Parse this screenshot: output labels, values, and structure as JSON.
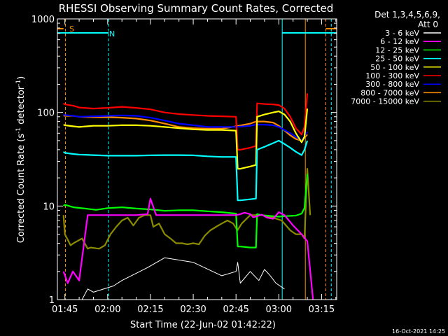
{
  "chart_data": {
    "type": "line",
    "title": "RHESSI Observing Summary Count Rates, Corrected",
    "xlabel": "Start Time (22-Jun-02 01:42:22)",
    "ylabel_main": "Corrected Count Rate (s",
    "ylabel_sup1": "-1",
    "ylabel_mid": " detector",
    "ylabel_sup2": "-1",
    "ylabel_end": ")",
    "yscale": "log",
    "ylim": [
      1,
      1000
    ],
    "xlim_minutes": [
      102.37,
      200.3
    ],
    "x_ticks": [
      {
        "label": "01:45",
        "minutes": 105
      },
      {
        "label": "02:00",
        "minutes": 120
      },
      {
        "label": "02:15",
        "minutes": 135
      },
      {
        "label": "02:30",
        "minutes": 150
      },
      {
        "label": "02:45",
        "minutes": 165
      },
      {
        "label": "03:00",
        "minutes": 180
      },
      {
        "label": "03:15",
        "minutes": 195
      }
    ],
    "y_ticks": [
      {
        "label": "1",
        "value": 1
      },
      {
        "label": "10",
        "value": 10
      },
      {
        "label": "100",
        "value": 100
      },
      {
        "label": "1000",
        "value": 1000
      }
    ],
    "legend": {
      "placement": "right",
      "header1": "Det 1,3,4,5,6,9,",
      "header2": "Att 0"
    },
    "series": [
      {
        "name": "3 - 6 keV",
        "color": "#ffffff",
        "x": [
          104.5,
          108.8,
          111,
          113,
          115,
          122,
          125,
          134,
          140,
          150,
          160,
          165,
          165.6,
          166.5,
          170,
          173,
          175,
          177,
          179,
          182
        ],
        "y": [
          1,
          1,
          1,
          1.3,
          1.2,
          1.4,
          1.6,
          2.2,
          2.8,
          2.5,
          1.8,
          2,
          2.5,
          1.5,
          2,
          1.6,
          2.1,
          1.8,
          1.5,
          1.3
        ]
      },
      {
        "name": "6 - 12 keV",
        "color": "#ff00ff",
        "x": [
          104.5,
          106,
          107.8,
          110,
          113,
          115,
          120,
          125,
          130,
          134,
          135,
          137,
          140,
          145,
          150,
          155,
          160,
          165,
          166.5,
          168,
          170,
          171,
          172,
          174,
          176,
          178,
          180,
          182,
          185,
          188,
          190,
          192
        ],
        "y": [
          2,
          1.5,
          2,
          1.6,
          8,
          8,
          8,
          8,
          8,
          8.2,
          12,
          8,
          8,
          8,
          8,
          8,
          8,
          8,
          8.2,
          8.5,
          8.2,
          7.6,
          7.7,
          8.1,
          7.5,
          7.3,
          8.6,
          8,
          6.2,
          5,
          4.2,
          1
        ]
      },
      {
        "name": "12 - 25 keV",
        "color": "#00ff00",
        "x": [
          104.5,
          105,
          108,
          112,
          116,
          120,
          125,
          130,
          135,
          140,
          145,
          150,
          155,
          160,
          165,
          165.6,
          166.5,
          170,
          172,
          172.4,
          174,
          178,
          180,
          182,
          186,
          188,
          189,
          190
        ],
        "y": [
          10,
          10.3,
          9.7,
          9.4,
          9.1,
          9.5,
          9.7,
          9.4,
          9.2,
          8.9,
          9.0,
          9.0,
          8.8,
          8.6,
          8.3,
          3.7,
          3.7,
          3.6,
          3.6,
          8.2,
          8.0,
          7.8,
          7.7,
          7.8,
          7.9,
          8.3,
          9.5,
          22
        ]
      },
      {
        "name": "25 - 50 keV",
        "color": "#00ffff",
        "x": [
          104.5,
          105,
          108,
          110,
          115,
          120,
          125,
          130,
          135,
          140,
          145,
          150,
          155,
          160,
          165,
          165.6,
          166.5,
          170,
          172,
          172.4,
          175,
          178,
          180,
          182,
          184,
          186,
          188,
          189,
          190
        ],
        "y": [
          38,
          37,
          36,
          35.5,
          35,
          34.5,
          34.5,
          34.5,
          34.8,
          35,
          35,
          34.8,
          34,
          33.5,
          33.5,
          11.5,
          11.5,
          11.8,
          12,
          40,
          43,
          47,
          50,
          46,
          42,
          38,
          35,
          40,
          50
        ]
      },
      {
        "name": "50 - 100 keV",
        "color": "#ffff00",
        "x": [
          104.5,
          105,
          108,
          110,
          115,
          120,
          125,
          130,
          135,
          140,
          145,
          150,
          155,
          160,
          165,
          165.6,
          166.5,
          170,
          172,
          172.4,
          175,
          178,
          180,
          182,
          184,
          186,
          188,
          189,
          190
        ],
        "y": [
          74,
          73,
          71,
          70,
          72,
          72,
          73,
          73,
          72,
          70,
          68,
          66,
          65,
          65,
          64,
          25,
          25,
          26.5,
          27.5,
          90,
          95,
          100,
          103,
          95,
          80,
          60,
          48,
          55,
          110
        ]
      },
      {
        "name": "100 - 300 keV",
        "color": "#ff0000",
        "x": [
          104.5,
          105,
          108,
          110,
          115,
          120,
          125,
          130,
          135,
          140,
          145,
          150,
          155,
          160,
          165,
          165.6,
          166.5,
          170,
          172,
          172.4,
          175,
          178,
          180,
          182,
          184,
          186,
          188,
          189,
          190
        ],
        "y": [
          125,
          122,
          118,
          113,
          110,
          112,
          115,
          112,
          108,
          100,
          96,
          94,
          92,
          91,
          90,
          40,
          40,
          42,
          44,
          125,
          123,
          122,
          120,
          110,
          90,
          68,
          58,
          70,
          160
        ]
      },
      {
        "name": "300 - 800 keV",
        "color": "#0000ff",
        "x": [
          104.5,
          105,
          108,
          110,
          115,
          120,
          125,
          130,
          135,
          140,
          145,
          150,
          155,
          160,
          165,
          170,
          172,
          175,
          178,
          180,
          182,
          184,
          186,
          188,
          190
        ],
        "y": [
          95,
          94,
          92,
          90,
          91,
          92,
          93,
          92,
          88,
          82,
          76,
          73,
          70,
          70,
          70,
          72,
          74,
          74,
          73,
          70,
          65,
          60,
          55,
          50,
          62
        ]
      },
      {
        "name": "800 - 7000 keV",
        "color": "#ff8c00",
        "x": [
          104.5,
          105,
          108,
          110,
          115,
          120,
          125,
          130,
          135,
          140,
          145,
          150,
          155,
          160,
          165,
          170,
          172,
          175,
          178,
          180,
          182,
          184,
          186,
          188,
          190
        ],
        "y": [
          93,
          92,
          92,
          90,
          89,
          89,
          88,
          86,
          82,
          76,
          70,
          68,
          67,
          67,
          71,
          76,
          80,
          80,
          78,
          72,
          64,
          57,
          52,
          50,
          58
        ]
      },
      {
        "name": "7000 - 15000 keV",
        "color": "#8b8b00",
        "x": [
          104.5,
          105,
          107,
          108,
          111,
          113,
          114,
          117,
          119,
          121,
          123,
          125,
          127,
          129,
          131,
          133,
          135,
          136,
          138,
          140,
          142,
          144,
          146,
          148,
          150,
          152,
          154,
          156,
          158,
          160,
          162,
          164,
          165.5,
          167,
          170,
          174,
          178,
          181,
          184,
          186,
          188,
          189,
          190,
          191
        ],
        "y": [
          8,
          5,
          3.8,
          4,
          4.5,
          3.5,
          3.6,
          3.5,
          3.8,
          5,
          6,
          7,
          7.5,
          6.2,
          7.5,
          8,
          8,
          6,
          6.5,
          5,
          4.5,
          4,
          4,
          3.9,
          4,
          3.9,
          4.8,
          5.5,
          6,
          6.5,
          7,
          6.5,
          5.5,
          6.5,
          8,
          8,
          7.5,
          7,
          5.5,
          5,
          5,
          4.5,
          25,
          8
        ]
      }
    ],
    "annotations": {
      "attenuator_label": "S",
      "night_label": "N"
    },
    "timestamp": "16-Oct-2021 14:25"
  }
}
